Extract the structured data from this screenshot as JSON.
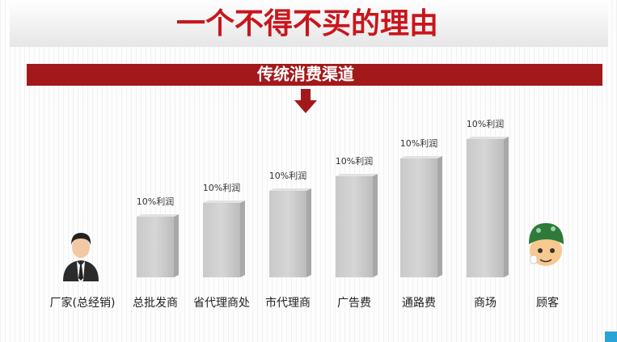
{
  "header": {
    "title": "一个不得不买的理由"
  },
  "banner": {
    "label": "传统消费渠道"
  },
  "steps": [
    {
      "label": "厂家(总经销)"
    },
    {
      "label": "总批发商",
      "profit": "10%利润"
    },
    {
      "label": "省代理商处",
      "profit": "10%利润"
    },
    {
      "label": "市代理商",
      "profit": "10%利润"
    },
    {
      "label": "广告费",
      "profit": "10%利润"
    },
    {
      "label": "通路费",
      "profit": "10%利润"
    },
    {
      "label": "商场",
      "profit": "10%利润"
    },
    {
      "label": "顾客"
    }
  ]
}
